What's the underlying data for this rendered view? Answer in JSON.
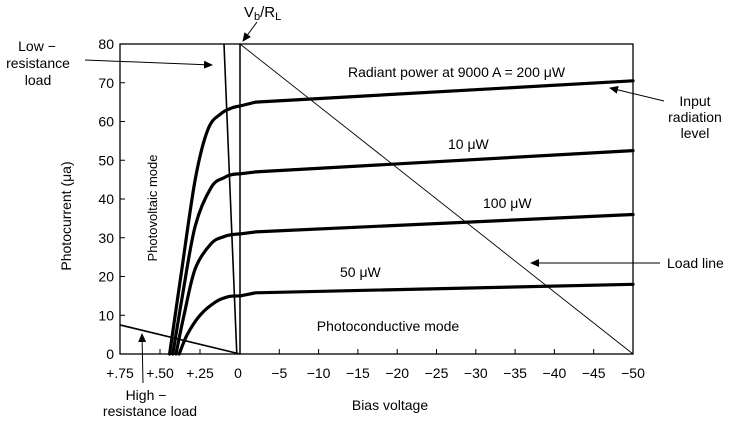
{
  "chart_data": {
    "type": "line",
    "title": "",
    "xlabel": "Bias voltage",
    "ylabel": "Photocurrent (μa)",
    "yticks": [
      "0",
      "10",
      "20",
      "30",
      "40",
      "50",
      "60",
      "70",
      "80"
    ],
    "xticks_left": [
      "+.75",
      "+.50",
      "+.25",
      "0"
    ],
    "xticks_right": [
      "0",
      "−5",
      "−10",
      "−15",
      "−20",
      "−25",
      "−30",
      "−35",
      "−40",
      "−45",
      "−50"
    ],
    "ylim": [
      0,
      80
    ],
    "xlim_left": [
      0.75,
      0
    ],
    "xlim_right": [
      0,
      -50
    ],
    "series": [
      {
        "label": "Radiant power at 9000 A = 200 μW",
        "left": [
          [
            0.44,
            0
          ],
          [
            0.37,
            20
          ],
          [
            0.28,
            45
          ],
          [
            0.2,
            58
          ],
          [
            0.12,
            62
          ],
          [
            0.05,
            63.5
          ],
          [
            0,
            64
          ]
        ],
        "right": [
          [
            0,
            64
          ],
          [
            -2,
            65
          ],
          [
            -50,
            70.5
          ]
        ]
      },
      {
        "label": "10 μW",
        "left": [
          [
            0.42,
            0
          ],
          [
            0.36,
            15
          ],
          [
            0.28,
            33
          ],
          [
            0.18,
            43
          ],
          [
            0.1,
            45.5
          ],
          [
            0.05,
            46.3
          ],
          [
            0,
            46.5
          ]
        ],
        "right": [
          [
            0,
            46.5
          ],
          [
            -2,
            47
          ],
          [
            -50,
            52.5
          ]
        ]
      },
      {
        "label": "100 μW",
        "left": [
          [
            0.4,
            0
          ],
          [
            0.35,
            10
          ],
          [
            0.28,
            22
          ],
          [
            0.18,
            28.5
          ],
          [
            0.1,
            30.3
          ],
          [
            0.05,
            30.8
          ],
          [
            0,
            31
          ]
        ],
        "right": [
          [
            0,
            31
          ],
          [
            -2,
            31.5
          ],
          [
            -50,
            36
          ]
        ]
      },
      {
        "label": "50 μW",
        "left": [
          [
            0.38,
            0
          ],
          [
            0.33,
            5
          ],
          [
            0.25,
            10
          ],
          [
            0.15,
            13.5
          ],
          [
            0.07,
            14.8
          ],
          [
            0,
            15
          ]
        ],
        "right": [
          [
            0,
            15
          ],
          [
            -2,
            15.8
          ],
          [
            -50,
            18
          ]
        ]
      }
    ],
    "load_lines": [
      {
        "name": "low-resistance",
        "points": [
          [
            0.1,
            80
          ],
          [
            0.02,
            0
          ]
        ]
      },
      {
        "name": "high-resistance",
        "points": [
          [
            0.75,
            7.5
          ],
          [
            0,
            0
          ]
        ]
      },
      {
        "name": "load-line",
        "points": [
          [
            0,
            80
          ],
          [
            -50,
            0
          ]
        ]
      }
    ],
    "annotations": {
      "vb_rl": "Vb/RL",
      "low_resistance_1": "Low −",
      "low_resistance_2": "resistance",
      "low_resistance_3": "load",
      "high_resistance_1": "High −",
      "high_resistance_2": "resistance load",
      "input_1": "Input",
      "input_2": "radiation",
      "input_3": "level",
      "load_line": "Load line",
      "photovoltaic_mode": "Photovoltaic mode",
      "photoconductive_mode": "Photoconductive mode",
      "curve_200": "Radiant power at 9000 A = 200 μW",
      "curve_10": "10 μW",
      "curve_100": "100 μW",
      "curve_50": "50 μW"
    }
  }
}
